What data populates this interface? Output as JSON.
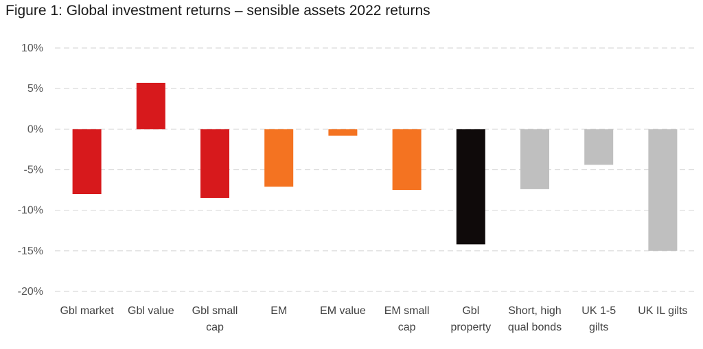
{
  "chart_data": {
    "type": "bar",
    "title": "Figure 1: Global investment returns – sensible assets 2022 returns",
    "xlabel": "",
    "ylabel": "",
    "ylim": [
      -20,
      10
    ],
    "yticks": [
      10,
      5,
      0,
      -5,
      -10,
      -15,
      -20
    ],
    "ytick_labels": [
      "10%",
      "5%",
      "0%",
      "-5%",
      "-10%",
      "-15%",
      "-20%"
    ],
    "grid": true,
    "legend": "none",
    "categories": [
      "Gbl market",
      "Gbl value",
      "Gbl small cap",
      "EM",
      "EM value",
      "EM small cap",
      "Gbl property",
      "Short, high qual bonds",
      "UK 1-5 gilts",
      "UK IL gilts"
    ],
    "category_lines": [
      [
        "Gbl market"
      ],
      [
        "Gbl value"
      ],
      [
        "Gbl small",
        "cap"
      ],
      [
        "EM"
      ],
      [
        "EM value"
      ],
      [
        "EM small",
        "cap"
      ],
      [
        "Gbl",
        "property"
      ],
      [
        "Short, high",
        "qual bonds"
      ],
      [
        "UK 1-5",
        "gilts"
      ],
      [
        "UK IL gilts"
      ]
    ],
    "values": [
      -8.0,
      5.7,
      -8.5,
      -7.1,
      -0.8,
      -7.5,
      -14.2,
      -7.4,
      -4.4,
      -15.0
    ],
    "colors": [
      "#d7191c",
      "#d7191c",
      "#d7191c",
      "#f47321",
      "#f47321",
      "#f47321",
      "#0f0a0a",
      "#bfbfbf",
      "#bfbfbf",
      "#bfbfbf"
    ]
  }
}
